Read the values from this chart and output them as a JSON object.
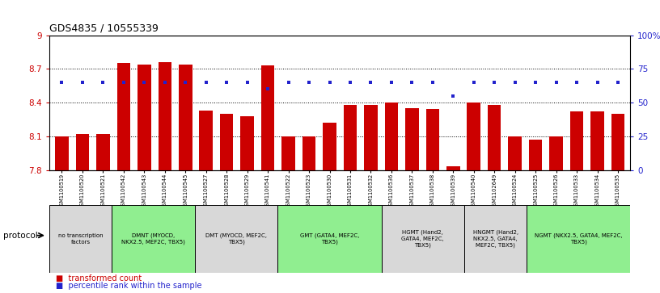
{
  "title": "GDS4835 / 10555339",
  "samples": [
    "GSM1100519",
    "GSM1100520",
    "GSM1100521",
    "GSM1100542",
    "GSM1100543",
    "GSM1100544",
    "GSM1100545",
    "GSM1100527",
    "GSM1100528",
    "GSM1100529",
    "GSM1100541",
    "GSM1100522",
    "GSM1100523",
    "GSM1100530",
    "GSM1100531",
    "GSM1100532",
    "GSM1100536",
    "GSM1100537",
    "GSM1100538",
    "GSM1100539",
    "GSM1100540",
    "GSM1102649",
    "GSM1100524",
    "GSM1100525",
    "GSM1100526",
    "GSM1100533",
    "GSM1100534",
    "GSM1100535"
  ],
  "bar_values": [
    8.1,
    8.12,
    8.12,
    8.75,
    8.74,
    8.76,
    8.74,
    8.33,
    8.3,
    8.28,
    8.73,
    8.1,
    8.1,
    8.22,
    8.38,
    8.38,
    8.4,
    8.35,
    8.34,
    7.83,
    8.4,
    8.38,
    8.1,
    8.07,
    8.1,
    8.32,
    8.32,
    8.3
  ],
  "percentile_values": [
    65,
    65,
    65,
    65,
    65,
    65,
    65,
    65,
    65,
    65,
    60,
    65,
    65,
    65,
    65,
    65,
    65,
    65,
    65,
    55,
    65,
    65,
    65,
    65,
    65,
    65,
    65,
    65
  ],
  "bar_color": "#cc0000",
  "percentile_color": "#2222cc",
  "ylim_left": [
    7.8,
    9.0
  ],
  "ylim_right": [
    0,
    100
  ],
  "yticks_left": [
    7.8,
    8.1,
    8.4,
    8.7,
    9.0
  ],
  "ytick_labels_left": [
    "7.8",
    "8.1",
    "8.4",
    "8.7",
    "9"
  ],
  "yticks_right": [
    0,
    25,
    50,
    75,
    100
  ],
  "ytick_labels_right": [
    "0",
    "25",
    "50",
    "75",
    "100%"
  ],
  "hlines": [
    8.1,
    8.4,
    8.7
  ],
  "groups": [
    {
      "label": "no transcription\nfactors",
      "start": 0,
      "end": 3,
      "color": "#d8d8d8"
    },
    {
      "label": "DMNT (MYOCD,\nNKX2.5, MEF2C, TBX5)",
      "start": 3,
      "end": 7,
      "color": "#90EE90"
    },
    {
      "label": "DMT (MYOCD, MEF2C,\nTBX5)",
      "start": 7,
      "end": 11,
      "color": "#d8d8d8"
    },
    {
      "label": "GMT (GATA4, MEF2C,\nTBX5)",
      "start": 11,
      "end": 16,
      "color": "#90EE90"
    },
    {
      "label": "HGMT (Hand2,\nGATA4, MEF2C,\nTBX5)",
      "start": 16,
      "end": 20,
      "color": "#d8d8d8"
    },
    {
      "label": "HNGMT (Hand2,\nNKX2.5, GATA4,\nMEF2C, TBX5)",
      "start": 20,
      "end": 23,
      "color": "#d8d8d8"
    },
    {
      "label": "NGMT (NKX2.5, GATA4, MEF2C,\nTBX5)",
      "start": 23,
      "end": 28,
      "color": "#90EE90"
    }
  ],
  "protocol_label": "protocol",
  "legend": [
    {
      "label": "transformed count",
      "color": "#cc0000"
    },
    {
      "label": "percentile rank within the sample",
      "color": "#2222cc"
    }
  ]
}
